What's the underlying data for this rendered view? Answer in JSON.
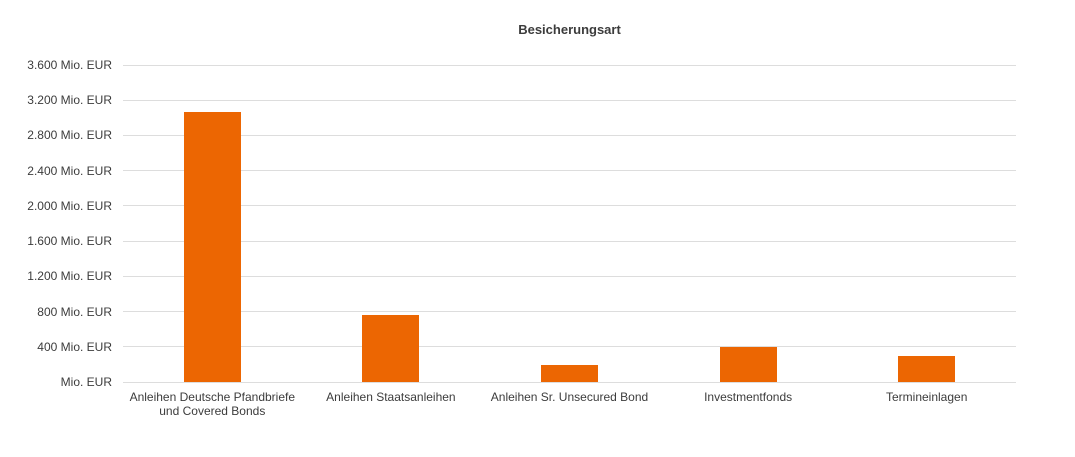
{
  "page": {
    "background_color": "#ffffff"
  },
  "chart_data": {
    "type": "bar",
    "title": "Besicherungsart",
    "categories": [
      "Anleihen Deutsche Pfandbriefe und Covered Bonds",
      "Anleihen Staatsanleihen",
      "Anleihen Sr. Unsecured Bond",
      "Investmentfonds",
      "Termineinlagen"
    ],
    "values": [
      3070,
      765,
      190,
      395,
      290
    ],
    "unit": "Mio. EUR",
    "xlabel": "",
    "ylabel": "",
    "ylim": [
      0,
      3600
    ],
    "grid": true,
    "legend_position": "none",
    "y_ticks": [
      {
        "value": 0,
        "label": "Mio. EUR"
      },
      {
        "value": 400,
        "label": "400 Mio. EUR"
      },
      {
        "value": 800,
        "label": "800 Mio. EUR"
      },
      {
        "value": 1200,
        "label": "1.200 Mio. EUR"
      },
      {
        "value": 1600,
        "label": "1.600 Mio. EUR"
      },
      {
        "value": 2000,
        "label": "2.000 Mio. EUR"
      },
      {
        "value": 2400,
        "label": "2.400 Mio. EUR"
      },
      {
        "value": 2800,
        "label": "2.800 Mio. EUR"
      },
      {
        "value": 3200,
        "label": "3.200 Mio. EUR"
      },
      {
        "value": 3600,
        "label": "3.600 Mio. EUR"
      }
    ],
    "colors": {
      "bar": "#EC6602",
      "gridline": "#DDDDDD",
      "text": "#3C3C3C",
      "title": "#3C3C3C"
    }
  }
}
